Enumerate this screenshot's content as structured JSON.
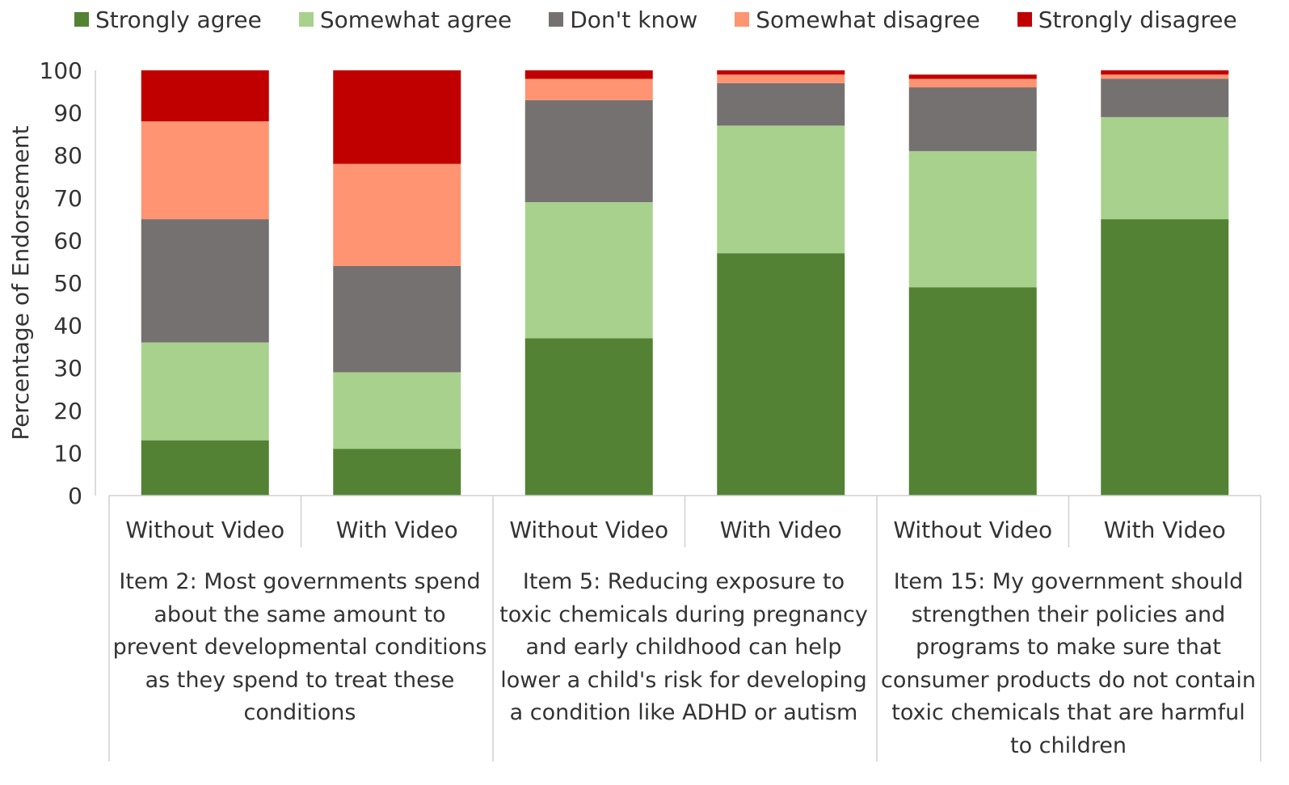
{
  "chart_data": {
    "type": "bar",
    "stacked": true,
    "ylabel": "Percentage of Endorsement",
    "xlabel": "",
    "ylim": [
      0,
      100
    ],
    "yticks": [
      0,
      10,
      20,
      30,
      40,
      50,
      60,
      70,
      80,
      90,
      100
    ],
    "legend_position": "top",
    "grid": false,
    "categories": [
      "Without Video",
      "With Video",
      "Without Video",
      "With Video",
      "Without Video",
      "With Video"
    ],
    "groups": [
      {
        "label": "Item 2: Most governments spend about the same amount to prevent developmental conditions as they spend to treat these conditions",
        "categories": [
          "Without Video",
          "With Video"
        ]
      },
      {
        "label": "Item 5: Reducing exposure to toxic chemicals during pregnancy and early childhood can help lower a child's risk for developing a condition like ADHD or autism",
        "categories": [
          "Without Video",
          "With Video"
        ]
      },
      {
        "label": "Item 15: My government should strengthen their policies and programs to make sure that consumer products do not contain toxic chemicals that are harmful to children",
        "categories": [
          "Without Video",
          "With Video"
        ]
      }
    ],
    "series": [
      {
        "name": "Strongly agree",
        "color": "#548235",
        "values": [
          13,
          11,
          37,
          57,
          49,
          65
        ]
      },
      {
        "name": "Somewhat agree",
        "color": "#a9d18e",
        "values": [
          23,
          18,
          32,
          30,
          32,
          24
        ]
      },
      {
        "name": "Don't know",
        "color": "#767171",
        "values": [
          29,
          25,
          24,
          10,
          15,
          9
        ]
      },
      {
        "name": "Somewhat disagree",
        "color": "#ff9473",
        "values": [
          23,
          24,
          5,
          2,
          2,
          1
        ]
      },
      {
        "name": "Strongly disagree",
        "color": "#c00000",
        "values": [
          12,
          22,
          2,
          1,
          1,
          1
        ]
      }
    ]
  }
}
